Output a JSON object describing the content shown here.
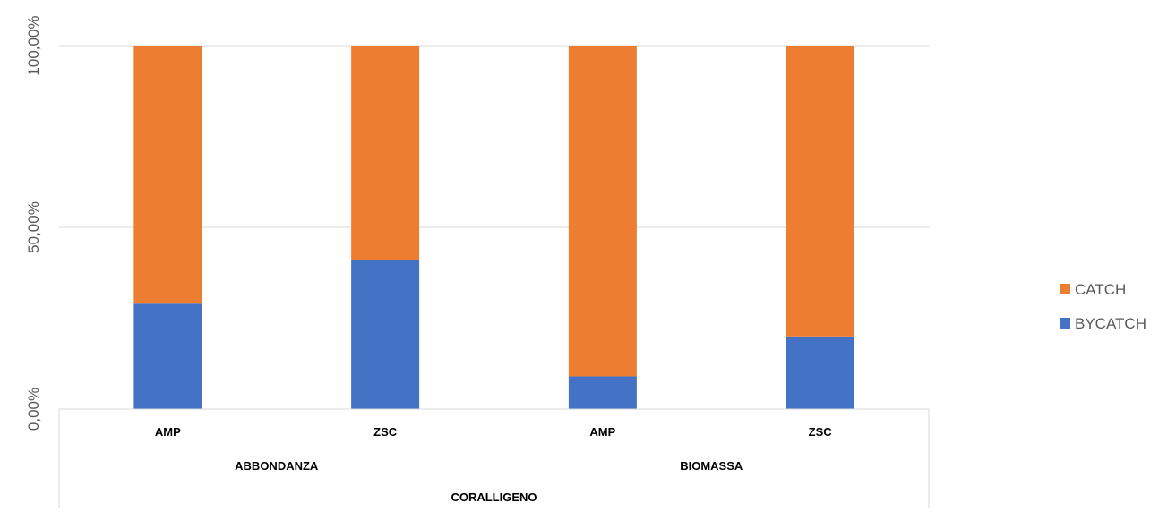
{
  "chart_data": {
    "type": "bar",
    "stacked": true,
    "percent_stacked": true,
    "title": "",
    "xlabel": "",
    "ylabel": "",
    "ylim": [
      0,
      100
    ],
    "yticks": [
      "0,00%",
      "50,00%",
      "100,00%"
    ],
    "ytick_values": [
      0,
      50,
      100
    ],
    "grid": true,
    "legend_position": "right",
    "categories": [
      "AMP",
      "ZSC",
      "AMP",
      "ZSC"
    ],
    "category_groups": [
      {
        "label": "ABBONDANZA",
        "span": 2
      },
      {
        "label": "BIOMASSA",
        "span": 2
      }
    ],
    "category_top_group": "CORALLIGENO",
    "series": [
      {
        "name": "BYCATCH",
        "color": "#4472C4",
        "values": [
          29,
          41,
          9,
          20
        ]
      },
      {
        "name": "CATCH",
        "color": "#ED7D31",
        "values": [
          71,
          59,
          91,
          80
        ]
      }
    ],
    "legend_order": [
      "CATCH",
      "BYCATCH"
    ]
  }
}
